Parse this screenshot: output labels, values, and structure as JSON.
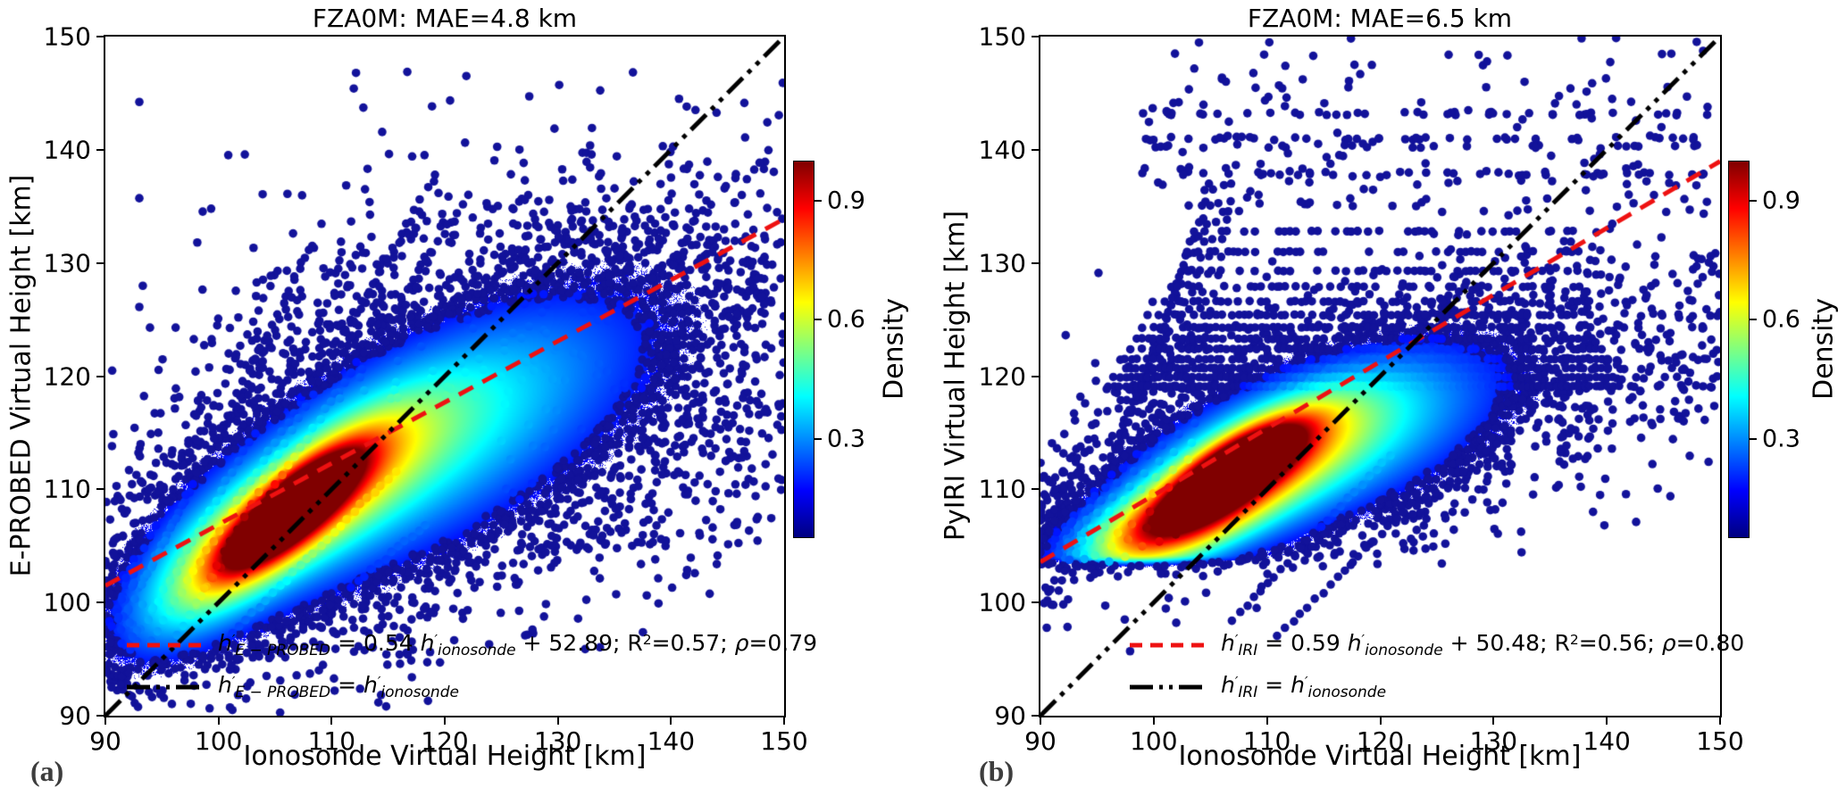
{
  "figure": {
    "background": "#ffffff",
    "dot_color": "#12129a",
    "colormap_name": "jet",
    "colormap_stops": [
      [
        0,
        "#000080"
      ],
      [
        0.125,
        "#0000ff"
      ],
      [
        0.375,
        "#00ffff"
      ],
      [
        0.625,
        "#ffff00"
      ],
      [
        0.875,
        "#ff0000"
      ],
      [
        1,
        "#800000"
      ]
    ]
  },
  "chart_data": {
    "type": "scatter",
    "description": "Two density-colored scatter plots comparing modeled vs ionosonde virtual heights",
    "panels": [
      {
        "label": "(a)",
        "title": "FZA0M: MAE=4.8 km",
        "mae_km": 4.8,
        "xlabel": "Ionosonde Virtual Height [km]",
        "ylabel": "E-PROBED Virtual Height [km]",
        "xlim": [
          90,
          150
        ],
        "ylim": [
          90,
          150
        ],
        "xticks": [
          "90",
          "100",
          "110",
          "120",
          "130",
          "140",
          "150"
        ],
        "yticks": [
          "90",
          "100",
          "110",
          "120",
          "130",
          "140",
          "150"
        ],
        "grid": false,
        "legend_position": "lower left",
        "colorbar": {
          "label": "Density",
          "ticks": [
            "0.3",
            "0.6",
            "0.9"
          ],
          "tick_values": [
            0.3,
            0.6,
            0.9
          ],
          "vmin": 0.05,
          "vmax": 1.0
        },
        "regression": {
          "slope": 0.54,
          "intercept": 52.89,
          "r2": 0.57,
          "rho": 0.79,
          "color": "#ee1111",
          "style": "dashed",
          "legend_segments": [
            {
              "t": "h",
              "i": true
            },
            {
              "t": "′",
              "sup": true,
              "i": true
            },
            {
              "t": "E − PROBED",
              "sub": true,
              "i": true
            },
            {
              "t": " = 0.54 "
            },
            {
              "t": "h",
              "i": true
            },
            {
              "t": "′",
              "sup": true,
              "i": true
            },
            {
              "t": "ionosonde",
              "sub": true,
              "i": true
            },
            {
              "t": " + 52.89;  R"
            },
            {
              "t": "2",
              "sup": true
            },
            {
              "t": "=0.57;  "
            },
            {
              "t": "ρ",
              "i": true
            },
            {
              "t": "=0.79"
            }
          ]
        },
        "identity": {
          "color": "#000000",
          "style": "dashdotdot",
          "legend_segments": [
            {
              "t": "h",
              "i": true
            },
            {
              "t": "′",
              "sup": true,
              "i": true
            },
            {
              "t": "E − PROBED",
              "sub": true,
              "i": true
            },
            {
              "t": " = "
            },
            {
              "t": "h",
              "i": true
            },
            {
              "t": "′",
              "sup": true,
              "i": true
            },
            {
              "t": "ionosonde",
              "sub": true,
              "i": true
            }
          ]
        },
        "density_peak": {
          "x": 106.4,
          "y": 108.1
        },
        "density_model": {
          "floor_y": null,
          "gaussians": [
            {
              "a": 1.0,
              "cx": 106.4,
              "cy": 108.1,
              "sx": 4.8,
              "sy": 1.55,
              "deg": 41
            },
            {
              "a": 0.52,
              "cx": 107.5,
              "cy": 108.6,
              "sx": 8.5,
              "sy": 2.9,
              "deg": 38
            },
            {
              "a": 0.3,
              "cx": 114.0,
              "cy": 112.0,
              "sx": 14.0,
              "sy": 5.2,
              "deg": 31
            },
            {
              "a": 0.16,
              "cx": 124.0,
              "cy": 116.5,
              "sx": 17.0,
              "sy": 7.5,
              "deg": 27
            },
            {
              "a": 0.22,
              "cx": 98.5,
              "cy": 102.5,
              "sx": 6.5,
              "sy": 3.2,
              "deg": 45
            }
          ]
        },
        "features": {
          "seed": 12345,
          "n_cloud_dots": 2600,
          "streaks": [
            {
              "x0": 90.5,
              "y0": 96.5,
              "slope": 1.9,
              "len": 16,
              "step": 0.5
            },
            {
              "x0": 92.2,
              "y0": 95.8,
              "slope": 1.75,
              "len": 20,
              "step": 0.5
            },
            {
              "x0": 94.0,
              "y0": 96.6,
              "slope": 1.6,
              "len": 24,
              "step": 0.55
            },
            {
              "x0": 96.3,
              "y0": 97.2,
              "slope": 1.5,
              "len": 26,
              "step": 0.55
            },
            {
              "x0": 91.0,
              "y0": 99.5,
              "slope": 2.1,
              "len": 14,
              "step": 0.5
            },
            {
              "x0": 93.2,
              "y0": 101.5,
              "slope": 2.0,
              "len": 15,
              "step": 0.5
            },
            {
              "x0": 97.5,
              "y0": 99.0,
              "slope": 1.8,
              "len": 22,
              "step": 0.6
            },
            {
              "x0": 100.0,
              "y0": 96.0,
              "slope": 1.0,
              "len": 16,
              "step": 0.6
            },
            {
              "x0": 104.5,
              "y0": 95.2,
              "slope": 0.85,
              "len": 14,
              "step": 0.6
            }
          ],
          "top_scatter": {
            "n": 180,
            "x_mean": 119,
            "x_sd": 12,
            "y_min": 118,
            "y_max": 150
          },
          "right_scatter": {
            "n": 200,
            "x_min": 125,
            "x_max": 150,
            "y_min": 105,
            "y_max": 135
          },
          "edge_cluster": {
            "n": 60,
            "cx": 91.5,
            "cy": 101,
            "sx": 1.3,
            "sy": 2.6
          },
          "bands": null
        }
      },
      {
        "label": "(b)",
        "title": "FZA0M: MAE=6.5 km",
        "mae_km": 6.5,
        "xlabel": "Ionosonde Virtual Height [km]",
        "ylabel": "PyIRI Virtual Height [km]",
        "xlim": [
          90,
          150
        ],
        "ylim": [
          90,
          150
        ],
        "xticks": [
          "90",
          "100",
          "110",
          "120",
          "130",
          "140",
          "150"
        ],
        "yticks": [
          "90",
          "100",
          "110",
          "120",
          "130",
          "140",
          "150"
        ],
        "grid": false,
        "legend_position": "lower left",
        "colorbar": {
          "label": "Density",
          "ticks": [
            "0.3",
            "0.6",
            "0.9"
          ],
          "tick_values": [
            0.3,
            0.6,
            0.9
          ],
          "vmin": 0.05,
          "vmax": 1.0
        },
        "regression": {
          "slope": 0.59,
          "intercept": 50.48,
          "r2": 0.56,
          "rho": 0.8,
          "color": "#ee1111",
          "style": "dashed",
          "legend_segments": [
            {
              "t": "h",
              "i": true
            },
            {
              "t": "′",
              "sup": true,
              "i": true
            },
            {
              "t": "IRI",
              "sub": true,
              "i": true
            },
            {
              "t": " = 0.59 "
            },
            {
              "t": "h",
              "i": true
            },
            {
              "t": "′",
              "sup": true,
              "i": true
            },
            {
              "t": "ionosonde",
              "sub": true,
              "i": true
            },
            {
              "t": " + 50.48;  R"
            },
            {
              "t": "2",
              "sup": true
            },
            {
              "t": "=0.56;  "
            },
            {
              "t": "ρ",
              "i": true
            },
            {
              "t": "=0.80"
            }
          ]
        },
        "identity": {
          "color": "#000000",
          "style": "dashdotdot",
          "legend_segments": [
            {
              "t": "h",
              "i": true
            },
            {
              "t": "′",
              "sup": true,
              "i": true
            },
            {
              "t": "IRI",
              "sub": true,
              "i": true
            },
            {
              "t": " = "
            },
            {
              "t": "h",
              "i": true
            },
            {
              "t": "′",
              "sup": true,
              "i": true
            },
            {
              "t": "ionosonde",
              "sub": true,
              "i": true
            }
          ]
        },
        "density_peak": {
          "x": 107.0,
          "y": 111.8
        },
        "density_model": {
          "floor_y": 104.2,
          "gaussians": [
            {
              "a": 1.0,
              "cx": 107.0,
              "cy": 111.6,
              "sx": 4.4,
              "sy": 1.5,
              "deg": 33
            },
            {
              "a": 0.55,
              "cx": 107.5,
              "cy": 111.2,
              "sx": 7.8,
              "sy": 2.7,
              "deg": 30
            },
            {
              "a": 0.3,
              "cx": 112.5,
              "cy": 112.8,
              "sx": 11.5,
              "sy": 4.2,
              "deg": 22
            },
            {
              "a": 0.45,
              "cx": 100.5,
              "cy": 106.2,
              "sx": 5.5,
              "sy": 2.2,
              "deg": 18
            },
            {
              "a": 0.14,
              "cx": 117.0,
              "cy": 115.5,
              "sx": 14.0,
              "sy": 5.5,
              "deg": 18
            }
          ]
        },
        "features": {
          "seed": 67890,
          "n_cloud_dots": 2200,
          "streaks": [
            {
              "x0": 90.3,
              "y0": 100.0,
              "slope": 2.2,
              "len": 11,
              "step": 0.45
            },
            {
              "x0": 91.5,
              "y0": 101.0,
              "slope": 2.5,
              "len": 10.5,
              "step": 0.42
            },
            {
              "x0": 93.0,
              "y0": 102.0,
              "slope": 2.9,
              "len": 10,
              "step": 0.4
            },
            {
              "x0": 94.5,
              "y0": 103.0,
              "slope": 3.3,
              "len": 9,
              "step": 0.38
            },
            {
              "x0": 96.0,
              "y0": 103.5,
              "slope": 3.8,
              "len": 8.5,
              "step": 0.36
            },
            {
              "x0": 97.5,
              "y0": 104.0,
              "slope": 4.4,
              "len": 7.5,
              "step": 0.34
            },
            {
              "x0": 99.0,
              "y0": 105.0,
              "slope": 5.0,
              "len": 6.5,
              "step": 0.3
            },
            {
              "x0": 100.5,
              "y0": 105.5,
              "slope": 5.6,
              "len": 6,
              "step": 0.28
            },
            {
              "x0": 102.0,
              "y0": 106.0,
              "slope": 6.3,
              "len": 5.5,
              "step": 0.26
            },
            {
              "x0": 107.0,
              "y0": 98.5,
              "slope": 1.05,
              "len": 14,
              "step": 0.6
            },
            {
              "x0": 111.0,
              "y0": 97.0,
              "slope": 1.0,
              "len": 12,
              "step": 0.65
            }
          ],
          "top_scatter": {
            "n": 300,
            "rows": [
              137.9,
              140.3,
              141.0,
              143.2
            ],
            "row_frac": 0.45,
            "x_min": 99,
            "x_max": 149,
            "y_min": 134.5,
            "y_max": 150
          },
          "right_scatter": {
            "n": 60,
            "x_min": 138,
            "x_max": 150,
            "y_min": 116,
            "y_max": 132
          },
          "edge_cluster": {
            "n": 80,
            "cx": 91.5,
            "cy": 106.5,
            "sx": 1.4,
            "sy": 2.2
          },
          "bands": {
            "ys": [
              119.1,
              119.9,
              120.7,
              121.5,
              122.4,
              123.3,
              124.3,
              125.4,
              126.6,
              127.9,
              129.3,
              131.0,
              132.8
            ],
            "x_min": 96,
            "x_max": 141,
            "step": 0.5,
            "skip_base": 0.05,
            "skip_per_band": 0.045,
            "jitter": 0.08,
            "right_tail_n": 36
          }
        }
      }
    ]
  }
}
